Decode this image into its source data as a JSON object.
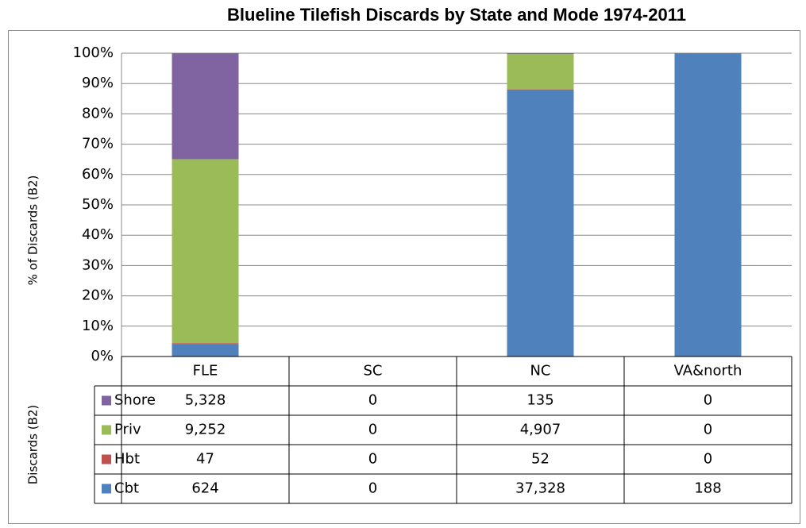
{
  "chart_data": {
    "type": "bar",
    "stacking": "percent",
    "title": "Blueline Tilefish Discards by State and Mode 1974-2011",
    "y_label": "% of Discards (B2)",
    "table_label": "Discards (B2)",
    "categories": [
      "FLE",
      "SC",
      "NC",
      "VA&north"
    ],
    "series": [
      {
        "name": "Cbt",
        "color": "#4f81bd",
        "values": [
          624,
          0,
          37328,
          188
        ],
        "value_labels": [
          "624",
          "0",
          "37,328",
          "188"
        ]
      },
      {
        "name": "Hbt",
        "color": "#c0504d",
        "values": [
          47,
          0,
          52,
          0
        ],
        "value_labels": [
          "47",
          "0",
          "52",
          "0"
        ]
      },
      {
        "name": "Priv",
        "color": "#9bbb59",
        "values": [
          9252,
          0,
          4907,
          0
        ],
        "value_labels": [
          "9,252",
          "0",
          "4,907",
          "0"
        ]
      },
      {
        "name": "Shore",
        "color": "#8064a2",
        "values": [
          5328,
          0,
          135,
          0
        ],
        "value_labels": [
          "5,328",
          "0",
          "135",
          "0"
        ]
      }
    ],
    "ylim": [
      0,
      100
    ],
    "yticks": [
      {
        "value": 0,
        "label": "0%"
      },
      {
        "value": 10,
        "label": "10%"
      },
      {
        "value": 20,
        "label": "20%"
      },
      {
        "value": 30,
        "label": "30%"
      },
      {
        "value": 40,
        "label": "40%"
      },
      {
        "value": 50,
        "label": "50%"
      },
      {
        "value": 60,
        "label": "60%"
      },
      {
        "value": 70,
        "label": "70%"
      },
      {
        "value": 80,
        "label": "80%"
      },
      {
        "value": 90,
        "label": "90%"
      },
      {
        "value": 100,
        "label": "100%"
      }
    ],
    "grid": true
  }
}
